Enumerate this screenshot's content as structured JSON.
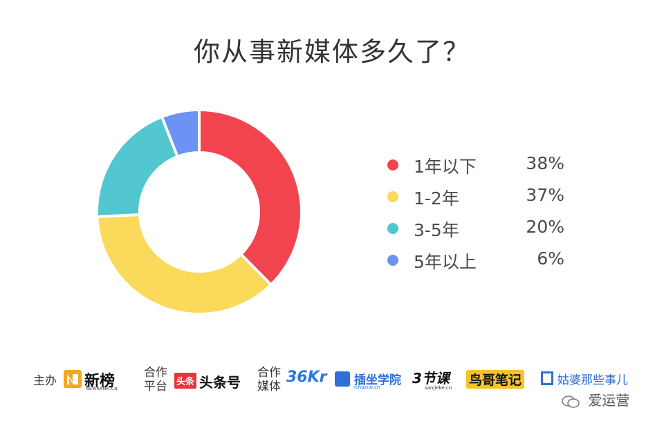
{
  "title": "你从事新媒体多久了？",
  "chart_data": {
    "type": "pie",
    "donut": true,
    "title": "你从事新媒体多久了？",
    "categories": [
      "1年以下",
      "1-2年",
      "3-5年",
      "5年以上"
    ],
    "values": [
      38,
      37,
      20,
      6
    ],
    "value_labels": [
      "38%",
      "37%",
      "20%",
      "6%"
    ],
    "colors": [
      "#f2444f",
      "#fbd95a",
      "#52c7cf",
      "#6e92f3"
    ],
    "legend_position": "right"
  },
  "legend": [
    {
      "label": "1年以下",
      "value": "38%",
      "color": "#f2444f"
    },
    {
      "label": "1-2年",
      "value": "37%",
      "color": "#fbd95a"
    },
    {
      "label": "3-5年",
      "value": "20%",
      "color": "#52c7cf"
    },
    {
      "label": "5年以上",
      "value": "6%",
      "color": "#6e92f3"
    }
  ],
  "footer": {
    "host_label": "主办",
    "host_logo": "新榜",
    "host_logo_sub": "NEWRANK.CN",
    "platform_label": "合作平台",
    "platform_logo_badge": "头条",
    "platform_logo": "头条号",
    "media_label": "合作媒体",
    "media_logos": [
      "36Kr",
      "插坐学院",
      "3节课",
      "鸟哥笔记",
      "姑婆那些事儿"
    ],
    "media_logo_subs": [
      "ichazuo.cn",
      "sanjieke.cn"
    ],
    "wechat_label": "爱运营"
  }
}
